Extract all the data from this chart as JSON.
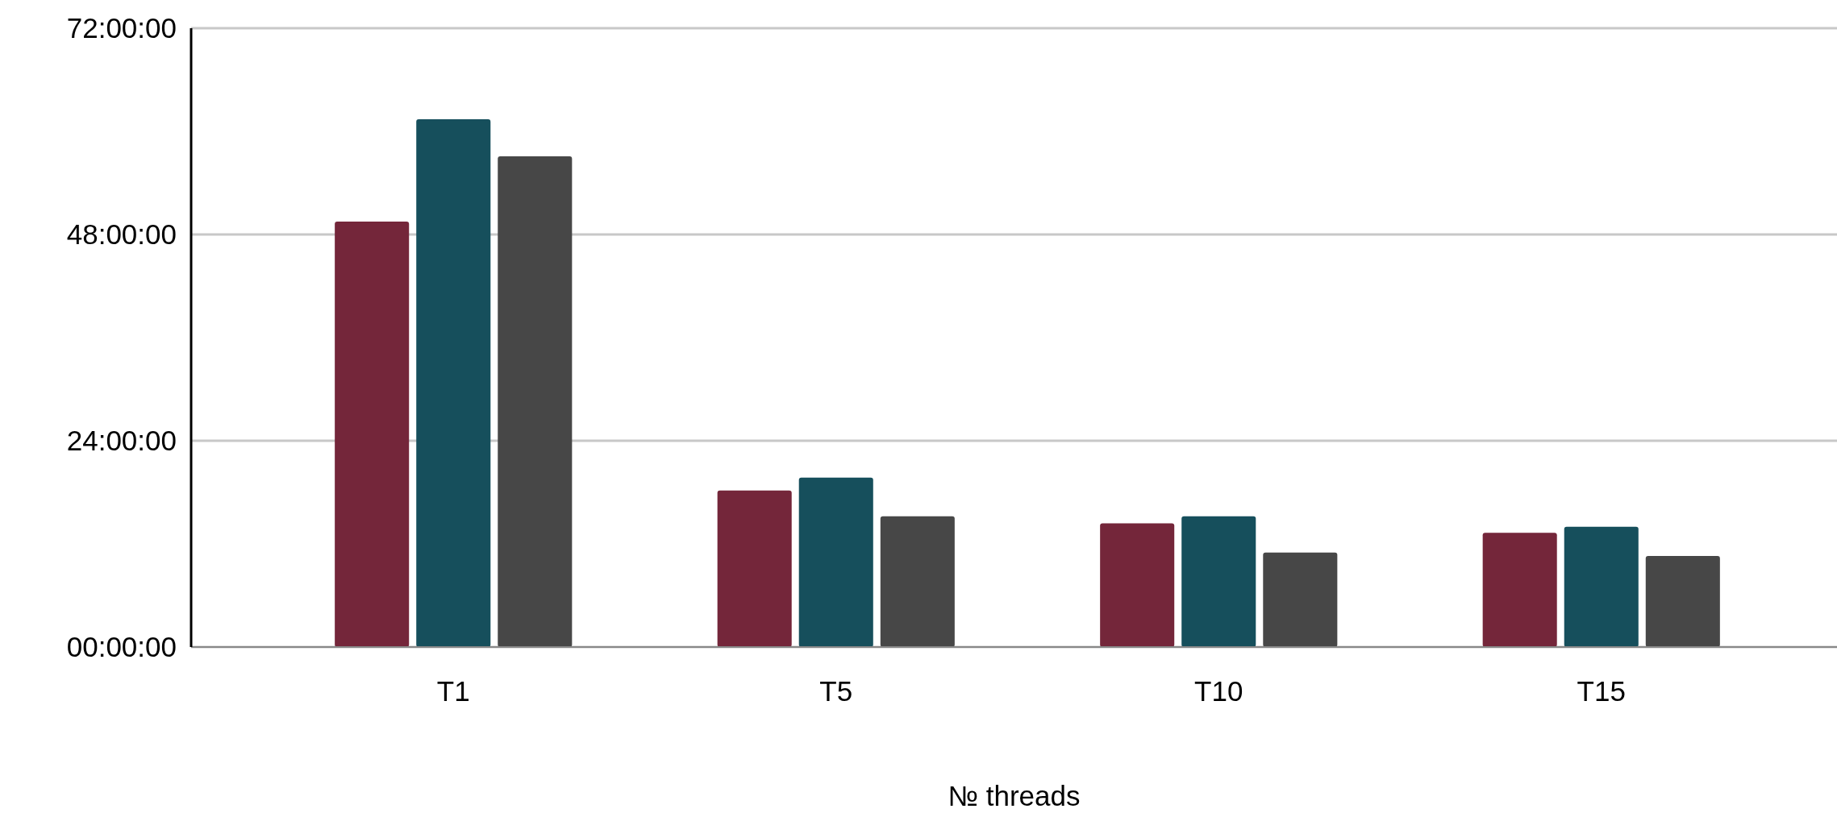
{
  "chart_data": {
    "type": "bar",
    "xlabel": "№ threads",
    "categories": [
      "T1",
      "T5",
      "T10",
      "T15"
    ],
    "series": [
      {
        "color": "#74263a",
        "values": [
          49.5,
          18.2,
          14.4,
          13.3
        ]
      },
      {
        "color": "#164f5c",
        "values": [
          61.4,
          19.7,
          15.2,
          14.0
        ]
      },
      {
        "color": "#474747",
        "values": [
          57.1,
          15.2,
          11.0,
          10.6
        ]
      }
    ],
    "ylim": [
      0,
      72
    ],
    "yticks": [
      {
        "value": 0,
        "label": "00:00:00"
      },
      {
        "value": 24,
        "label": "24:00:00"
      },
      {
        "value": 48,
        "label": "48:00:00"
      },
      {
        "value": 72,
        "label": "72:00:00"
      }
    ],
    "grid": "y"
  }
}
